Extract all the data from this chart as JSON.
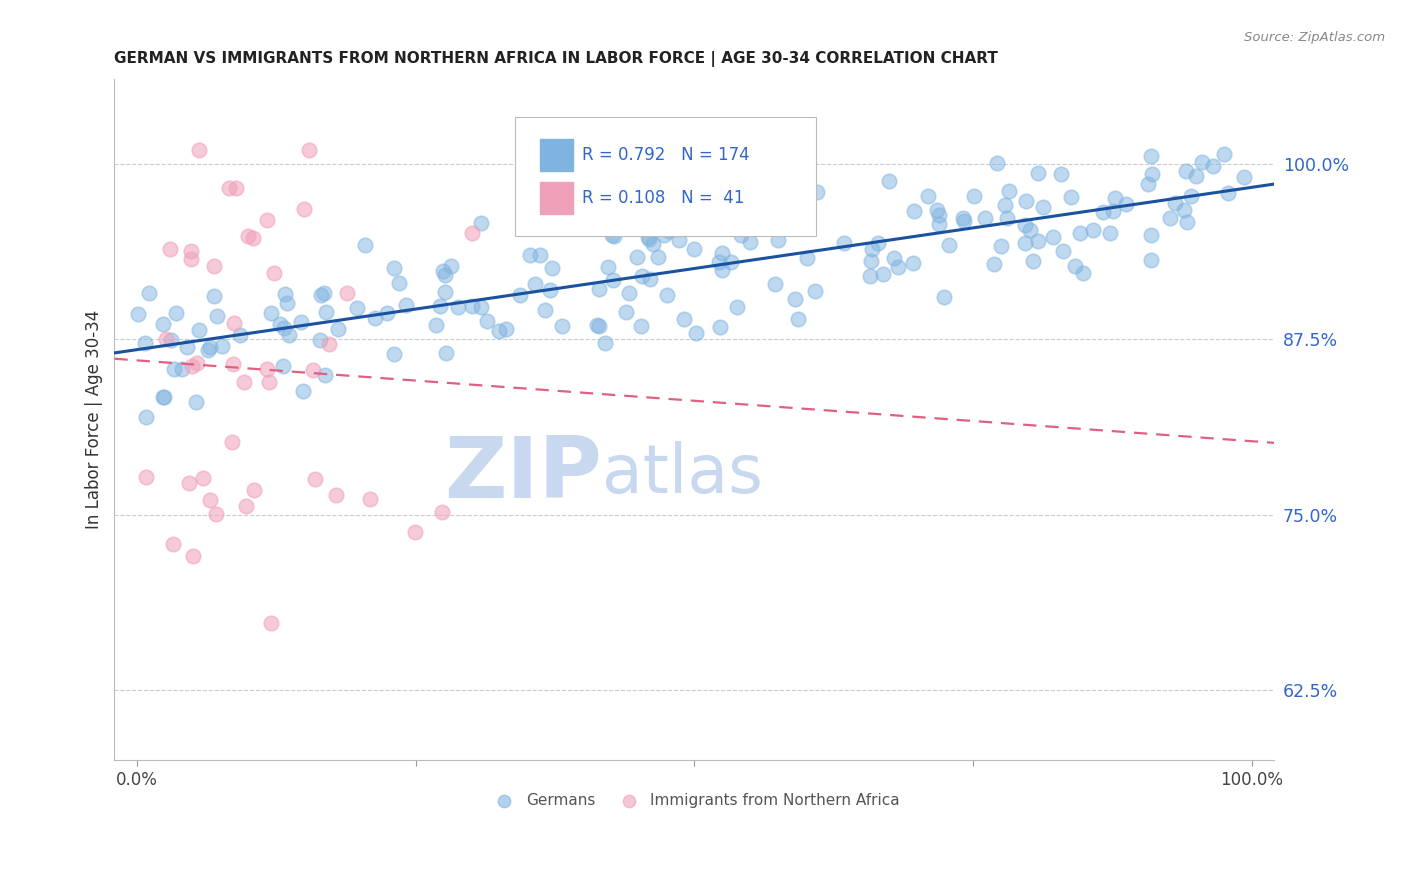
{
  "title": "GERMAN VS IMMIGRANTS FROM NORTHERN AFRICA IN LABOR FORCE | AGE 30-34 CORRELATION CHART",
  "source": "Source: ZipAtlas.com",
  "ylabel": "In Labor Force | Age 30-34",
  "y_ticks": [
    0.625,
    0.75,
    0.875,
    1.0
  ],
  "y_tick_labels": [
    "62.5%",
    "75.0%",
    "87.5%",
    "100.0%"
  ],
  "x_lim": [
    -0.02,
    1.02
  ],
  "y_lim": [
    0.575,
    1.06
  ],
  "german_R": 0.792,
  "german_N": 174,
  "immigrant_R": 0.108,
  "immigrant_N": 41,
  "blue_scatter": "#7fb3e0",
  "pink_scatter": "#f0a0b8",
  "line_blue_color": "#1a52a0",
  "line_pink_color": "#e06080",
  "watermark_zip": "ZIP",
  "watermark_atlas": "atlas",
  "watermark_color_zip": "#c8d8ee",
  "watermark_color_atlas": "#c8d8ee",
  "background": "#ffffff",
  "legend_label_german": "Germans",
  "legend_label_immigrant": "Immigrants from Northern Africa",
  "tick_color": "#3366cc",
  "title_color": "#222222",
  "source_color": "#888888"
}
